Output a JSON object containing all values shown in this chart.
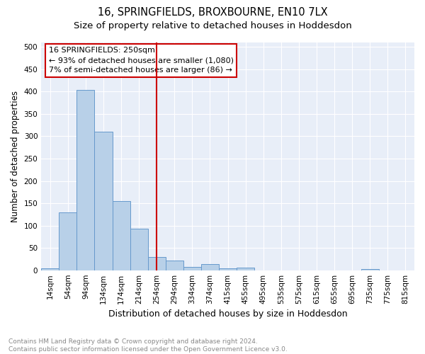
{
  "title1": "16, SPRINGFIELDS, BROXBOURNE, EN10 7LX",
  "title2": "Size of property relative to detached houses in Hoddesdon",
  "xlabel": "Distribution of detached houses by size in Hoddesdon",
  "ylabel": "Number of detached properties",
  "categories": [
    "14sqm",
    "54sqm",
    "94sqm",
    "134sqm",
    "174sqm",
    "214sqm",
    "254sqm",
    "294sqm",
    "334sqm",
    "374sqm",
    "415sqm",
    "455sqm",
    "495sqm",
    "535sqm",
    "575sqm",
    "615sqm",
    "655sqm",
    "695sqm",
    "735sqm",
    "775sqm",
    "815sqm"
  ],
  "values": [
    5,
    130,
    403,
    310,
    155,
    93,
    30,
    22,
    8,
    13,
    5,
    6,
    0,
    0,
    0,
    0,
    0,
    0,
    3,
    0,
    0
  ],
  "bar_color": "#b8d0e8",
  "bar_edge_color": "#6699cc",
  "property_label": "16 SPRINGFIELDS: 250sqm",
  "annotation_line1": "← 93% of detached houses are smaller (1,080)",
  "annotation_line2": "7% of semi-detached houses are larger (86) →",
  "vline_color": "#cc0000",
  "annotation_box_edgecolor": "#cc0000",
  "vline_x_index": 6,
  "ylim": [
    0,
    510
  ],
  "yticks": [
    0,
    50,
    100,
    150,
    200,
    250,
    300,
    350,
    400,
    450,
    500
  ],
  "bg_color": "#e8eef8",
  "footer": "Contains HM Land Registry data © Crown copyright and database right 2024.\nContains public sector information licensed under the Open Government Licence v3.0.",
  "title_fontsize": 10.5,
  "subtitle_fontsize": 9.5,
  "axis_label_fontsize": 8.5,
  "tick_fontsize": 7.5,
  "footer_fontsize": 6.5,
  "ann_fontsize": 8
}
